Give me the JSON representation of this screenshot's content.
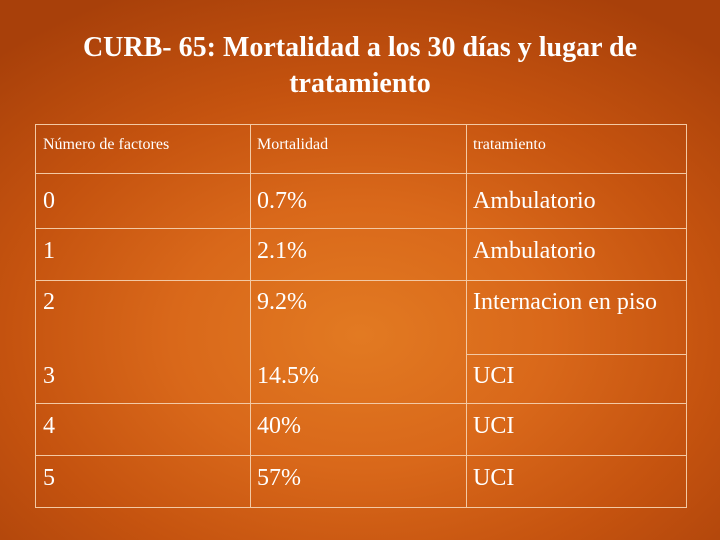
{
  "slide": {
    "title": "CURB- 65: Mortalidad a los 30 días y lugar de tratamiento"
  },
  "table": {
    "headers": [
      "Número de factores",
      "Mortalidad",
      "tratamiento"
    ],
    "rows": [
      {
        "factores": "0",
        "mortalidad": "0.7%",
        "tratamiento": "Ambulatorio"
      },
      {
        "factores": "1",
        "mortalidad": "2.1%",
        "tratamiento": "Ambulatorio"
      },
      {
        "factores": "2",
        "mortalidad": "9.2%",
        "tratamiento": "Internacion en piso"
      },
      {
        "factores": "3",
        "mortalidad": "14.5%",
        "tratamiento": "UCI"
      },
      {
        "factores": "4",
        "mortalidad": "40%",
        "tratamiento": "UCI"
      },
      {
        "factores": "5",
        "mortalidad": "57%",
        "tratamiento": "UCI"
      }
    ]
  },
  "colors": {
    "background": "#d9681a",
    "text": "#ffffff",
    "grid": "#f3c9a4"
  }
}
